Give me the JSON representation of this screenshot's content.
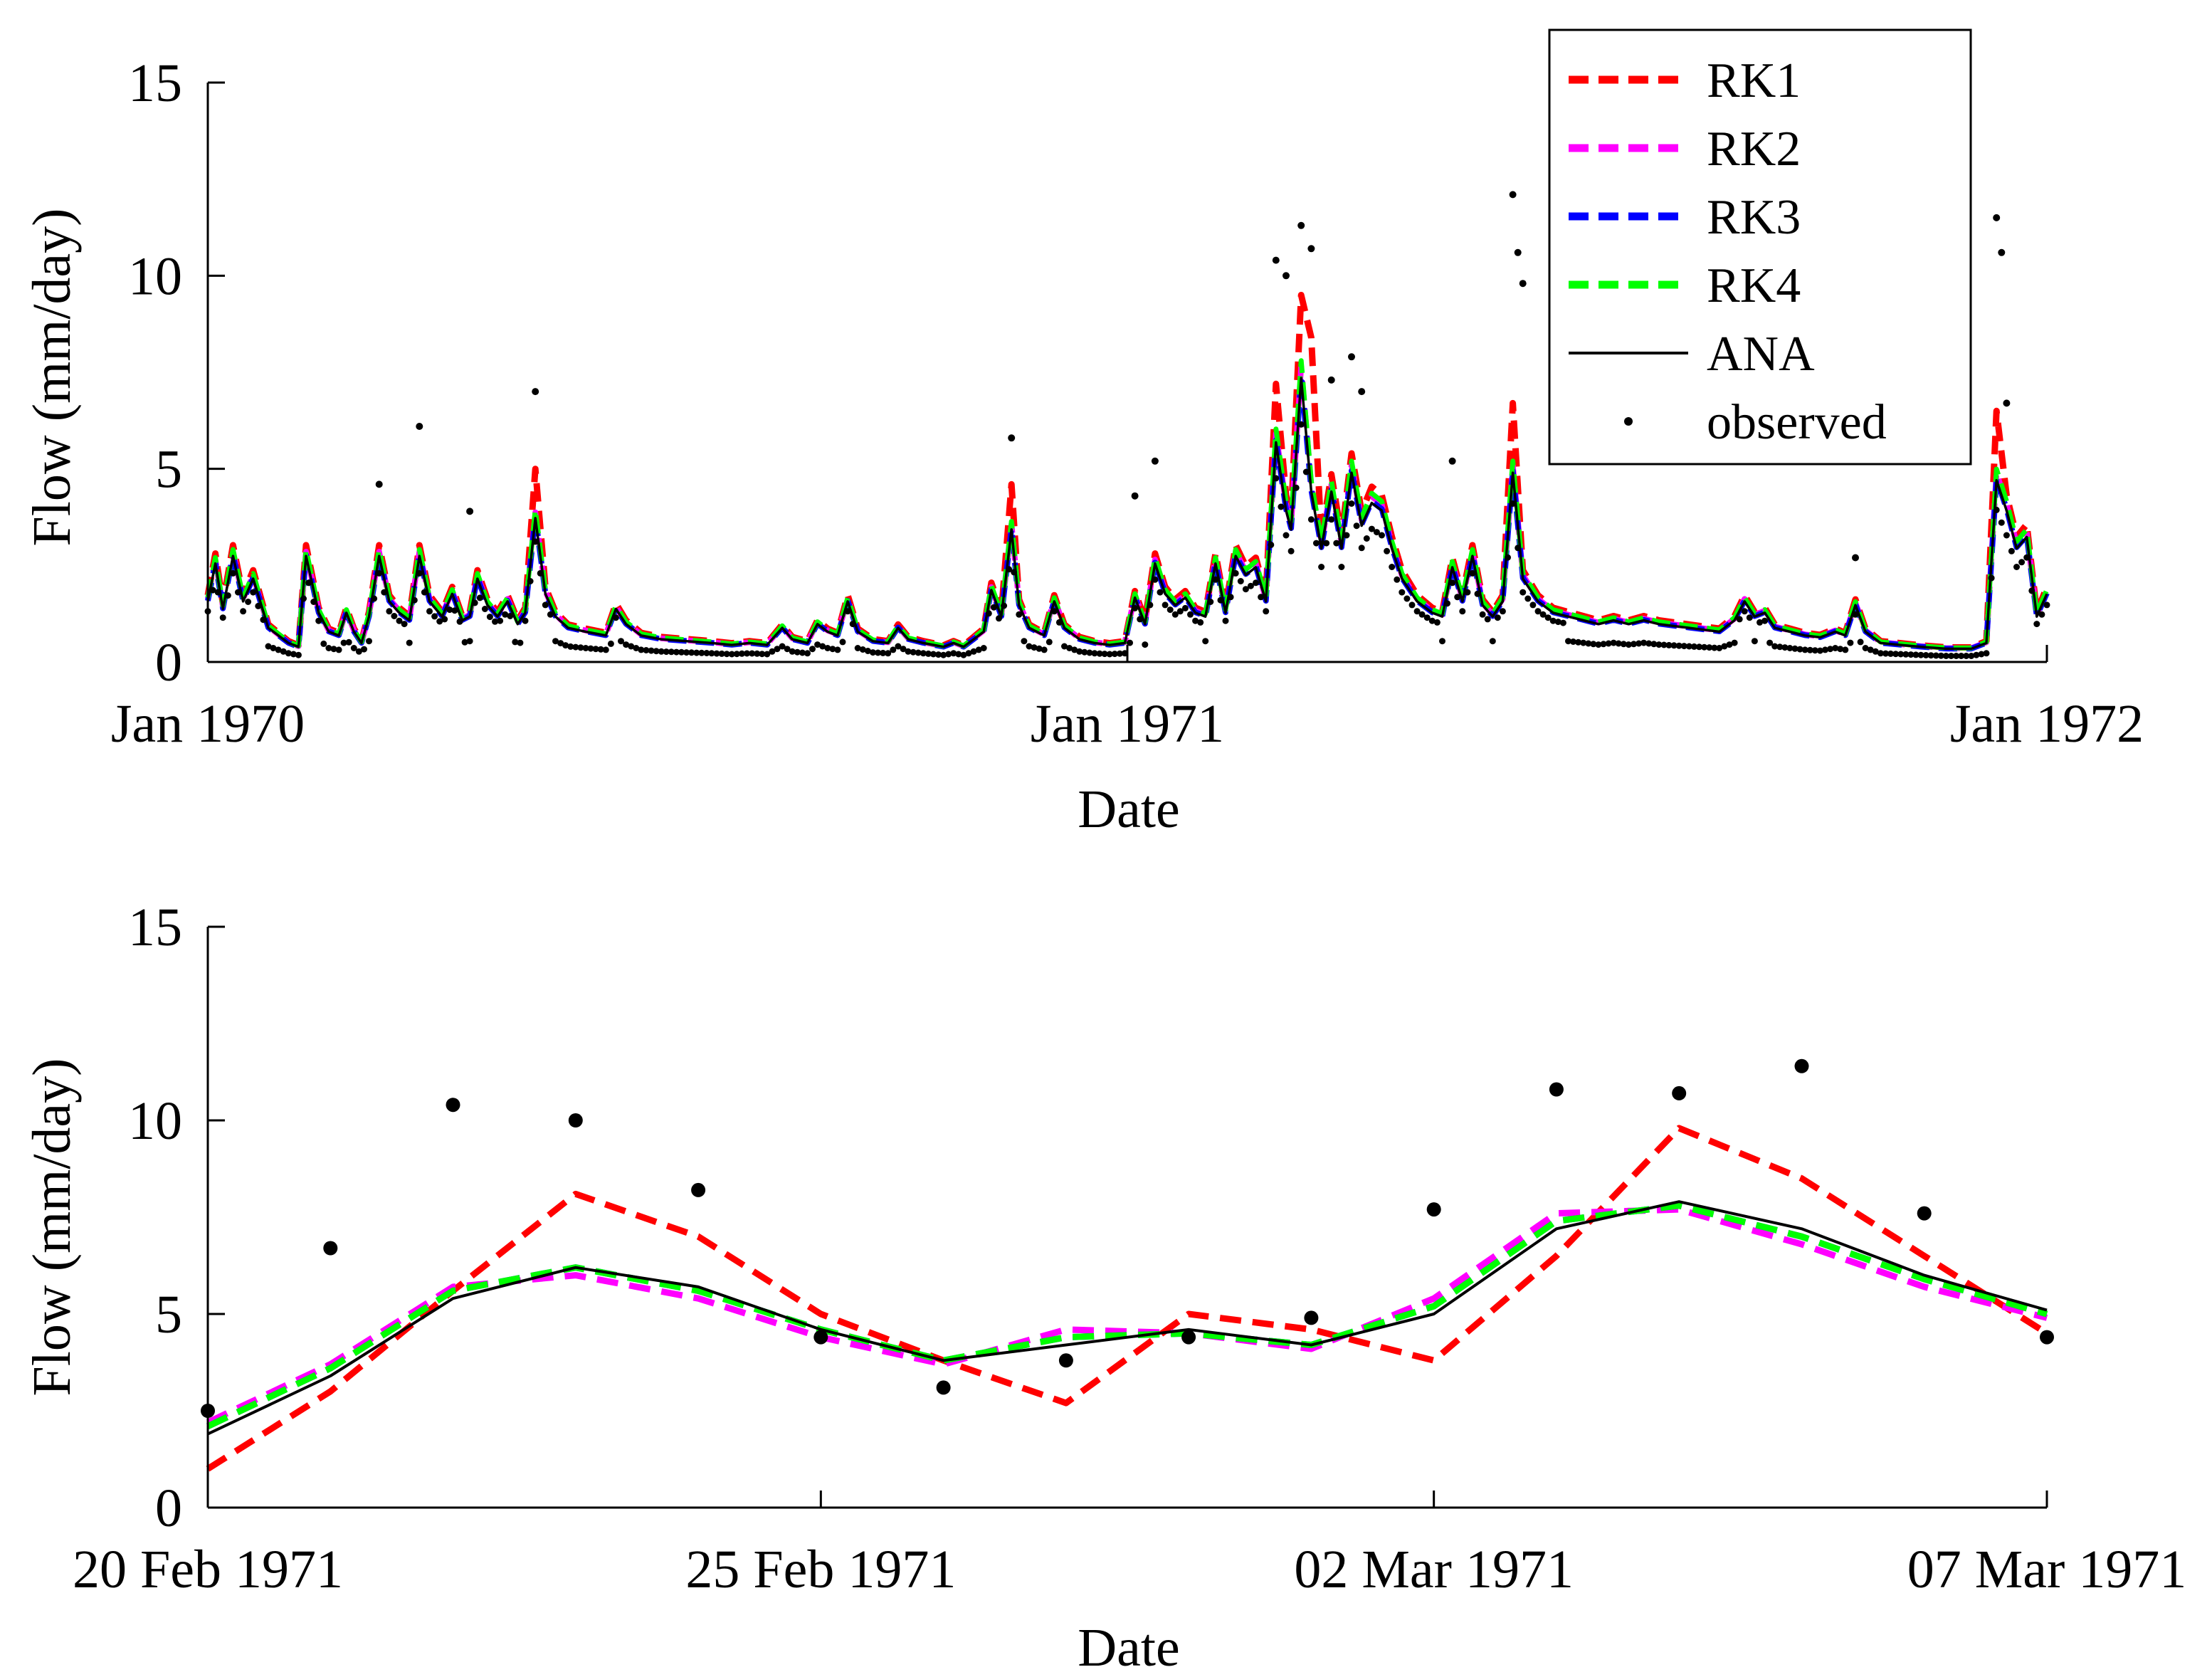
{
  "chart_data": [
    {
      "type": "line",
      "xlabel": "Date",
      "ylabel": "Flow (mm/day)",
      "xlim": [
        0,
        730
      ],
      "ylim": [
        0,
        15
      ],
      "xticks": [
        {
          "value": 0,
          "label": "Jan 1970"
        },
        {
          "value": 365,
          "label": "Jan 1971"
        },
        {
          "value": 730,
          "label": "Jan 1972"
        }
      ],
      "yticks": [
        {
          "value": 0,
          "label": "0"
        },
        {
          "value": 5,
          "label": "5"
        },
        {
          "value": 10,
          "label": "10"
        },
        {
          "value": 15,
          "label": "15"
        }
      ],
      "legend": {
        "position": "top-right",
        "entries": [
          "RK1",
          "RK2",
          "RK3",
          "RK4",
          "ANA",
          "observed"
        ]
      },
      "colors": {
        "RK1": "#ff0000",
        "RK2": "#ff00ff",
        "RK3": "#0000ff",
        "RK4": "#00ff00",
        "ANA": "#000000",
        "observed": "#000000"
      },
      "base_flow": [
        [
          0,
          1.6
        ],
        [
          3,
          2.6
        ],
        [
          6,
          1.4
        ],
        [
          10,
          2.8
        ],
        [
          14,
          1.6
        ],
        [
          18,
          2.2
        ],
        [
          24,
          0.9
        ],
        [
          32,
          0.5
        ],
        [
          36,
          0.4
        ],
        [
          39,
          2.8
        ],
        [
          44,
          1.3
        ],
        [
          48,
          0.8
        ],
        [
          52,
          0.7
        ],
        [
          55,
          1.3
        ],
        [
          58,
          0.8
        ],
        [
          61,
          0.5
        ],
        [
          64,
          1.2
        ],
        [
          68,
          2.8
        ],
        [
          72,
          1.6
        ],
        [
          76,
          1.3
        ],
        [
          80,
          1.1
        ],
        [
          84,
          2.8
        ],
        [
          88,
          1.6
        ],
        [
          93,
          1.2
        ],
        [
          97,
          1.8
        ],
        [
          101,
          1.1
        ],
        [
          104,
          1.2
        ],
        [
          107,
          2.2
        ],
        [
          111,
          1.5
        ],
        [
          115,
          1.2
        ],
        [
          119,
          1.6
        ],
        [
          123,
          1.0
        ],
        [
          126,
          1.3
        ],
        [
          130,
          3.8
        ],
        [
          134,
          1.8
        ],
        [
          138,
          1.2
        ],
        [
          143,
          0.9
        ],
        [
          150,
          0.8
        ],
        [
          158,
          0.7
        ],
        [
          162,
          1.4
        ],
        [
          166,
          1.0
        ],
        [
          172,
          0.7
        ],
        [
          180,
          0.6
        ],
        [
          190,
          0.55
        ],
        [
          200,
          0.5
        ],
        [
          208,
          0.45
        ],
        [
          215,
          0.5
        ],
        [
          222,
          0.45
        ],
        [
          228,
          0.9
        ],
        [
          232,
          0.6
        ],
        [
          238,
          0.5
        ],
        [
          242,
          1.0
        ],
        [
          246,
          0.8
        ],
        [
          250,
          0.7
        ],
        [
          254,
          1.6
        ],
        [
          258,
          0.8
        ],
        [
          264,
          0.55
        ],
        [
          270,
          0.5
        ],
        [
          274,
          0.9
        ],
        [
          278,
          0.6
        ],
        [
          284,
          0.5
        ],
        [
          292,
          0.4
        ],
        [
          296,
          0.5
        ],
        [
          300,
          0.4
        ],
        [
          304,
          0.6
        ],
        [
          308,
          0.8
        ],
        [
          311,
          1.9
        ],
        [
          315,
          1.2
        ],
        [
          319,
          3.5
        ],
        [
          322,
          1.5
        ],
        [
          326,
          0.9
        ],
        [
          332,
          0.7
        ],
        [
          336,
          1.6
        ],
        [
          340,
          0.9
        ],
        [
          346,
          0.6
        ],
        [
          352,
          0.5
        ],
        [
          358,
          0.45
        ],
        [
          364,
          0.5
        ],
        [
          368,
          1.7
        ],
        [
          372,
          1.0
        ],
        [
          376,
          2.6
        ],
        [
          380,
          1.8
        ],
        [
          384,
          1.5
        ],
        [
          388,
          1.7
        ],
        [
          392,
          1.3
        ],
        [
          396,
          1.2
        ],
        [
          400,
          2.6
        ],
        [
          404,
          1.3
        ],
        [
          408,
          2.8
        ],
        [
          412,
          2.3
        ],
        [
          416,
          2.5
        ],
        [
          420,
          1.6
        ],
        [
          424,
          5.8
        ],
        [
          428,
          4.0
        ],
        [
          430,
          3.5
        ],
        [
          434,
          7.5
        ],
        [
          438,
          4.5
        ],
        [
          442,
          3.0
        ],
        [
          446,
          4.5
        ],
        [
          450,
          3.0
        ],
        [
          454,
          5.0
        ],
        [
          458,
          3.6
        ],
        [
          462,
          4.2
        ],
        [
          466,
          4.0
        ],
        [
          470,
          3.0
        ],
        [
          474,
          2.2
        ],
        [
          480,
          1.6
        ],
        [
          486,
          1.3
        ],
        [
          490,
          1.2
        ],
        [
          494,
          2.5
        ],
        [
          498,
          1.6
        ],
        [
          502,
          2.8
        ],
        [
          506,
          1.5
        ],
        [
          510,
          1.2
        ],
        [
          514,
          1.6
        ],
        [
          518,
          5.0
        ],
        [
          522,
          2.2
        ],
        [
          528,
          1.6
        ],
        [
          534,
          1.3
        ],
        [
          540,
          1.2
        ],
        [
          546,
          1.1
        ],
        [
          552,
          1.0
        ],
        [
          558,
          1.1
        ],
        [
          564,
          1.0
        ],
        [
          570,
          1.1
        ],
        [
          576,
          1.0
        ],
        [
          582,
          0.95
        ],
        [
          588,
          0.9
        ],
        [
          594,
          0.85
        ],
        [
          600,
          0.8
        ],
        [
          606,
          1.1
        ],
        [
          610,
          1.6
        ],
        [
          614,
          1.2
        ],
        [
          618,
          1.3
        ],
        [
          622,
          0.9
        ],
        [
          628,
          0.8
        ],
        [
          634,
          0.7
        ],
        [
          640,
          0.65
        ],
        [
          646,
          0.8
        ],
        [
          650,
          0.7
        ],
        [
          654,
          1.5
        ],
        [
          658,
          0.8
        ],
        [
          664,
          0.5
        ],
        [
          672,
          0.45
        ],
        [
          680,
          0.4
        ],
        [
          690,
          0.35
        ],
        [
          700,
          0.35
        ],
        [
          706,
          0.5
        ],
        [
          710,
          4.8
        ],
        [
          714,
          4.0
        ],
        [
          718,
          3.0
        ],
        [
          722,
          3.3
        ],
        [
          726,
          1.2
        ],
        [
          730,
          1.8
        ]
      ],
      "rk1_peaks": [
        [
          130,
          5.0
        ],
        [
          319,
          4.6
        ],
        [
          424,
          7.2
        ],
        [
          434,
          9.5
        ],
        [
          438,
          8.4
        ],
        [
          518,
          6.7
        ],
        [
          710,
          6.5
        ]
      ],
      "observed_peaks": [
        [
          68,
          4.6
        ],
        [
          84,
          6.1
        ],
        [
          104,
          3.9
        ],
        [
          130,
          7.0
        ],
        [
          319,
          5.8
        ],
        [
          368,
          4.3
        ],
        [
          376,
          5.2
        ],
        [
          424,
          10.4
        ],
        [
          428,
          10.0
        ],
        [
          434,
          11.3
        ],
        [
          438,
          10.7
        ],
        [
          446,
          7.3
        ],
        [
          454,
          7.9
        ],
        [
          458,
          7.0
        ],
        [
          494,
          5.2
        ],
        [
          518,
          12.1
        ],
        [
          520,
          10.6
        ],
        [
          522,
          9.8
        ],
        [
          654,
          2.7
        ],
        [
          710,
          11.5
        ],
        [
          712,
          10.6
        ],
        [
          714,
          6.7
        ]
      ]
    },
    {
      "type": "line",
      "xlabel": "Date",
      "ylabel": "Flow (mm/day)",
      "xlim": [
        0,
        15
      ],
      "ylim": [
        0,
        15
      ],
      "xticks": [
        {
          "value": 0,
          "label": "20 Feb 1971"
        },
        {
          "value": 5,
          "label": "25 Feb 1971"
        },
        {
          "value": 10,
          "label": "02 Mar 1971"
        },
        {
          "value": 15,
          "label": "07 Mar 1971"
        }
      ],
      "yticks": [
        {
          "value": 0,
          "label": "0"
        },
        {
          "value": 5,
          "label": "5"
        },
        {
          "value": 10,
          "label": "10"
        },
        {
          "value": 15,
          "label": "15"
        }
      ],
      "x": [
        0,
        1,
        2,
        3,
        4,
        5,
        6,
        7,
        8,
        9,
        10,
        11,
        12,
        13,
        14,
        15
      ],
      "series": [
        {
          "name": "RK1",
          "color": "#ff0000",
          "style": "dashed",
          "values": [
            1.0,
            3.0,
            5.6,
            8.1,
            7.0,
            5.0,
            3.8,
            2.7,
            5.0,
            4.6,
            3.8,
            6.5,
            9.8,
            8.5,
            6.5,
            4.5
          ]
        },
        {
          "name": "RK2",
          "color": "#ff00ff",
          "style": "dashed",
          "values": [
            2.2,
            3.7,
            5.7,
            6.0,
            5.4,
            4.4,
            3.7,
            4.6,
            4.5,
            4.1,
            5.4,
            7.6,
            7.7,
            6.8,
            5.7,
            4.9
          ]
        },
        {
          "name": "RK3",
          "color": "#0000ff",
          "style": "dashed",
          "values": [
            2.1,
            3.6,
            5.6,
            6.2,
            5.6,
            4.6,
            3.8,
            4.4,
            4.5,
            4.2,
            5.2,
            7.4,
            7.8,
            7.0,
            5.9,
            5.0
          ]
        },
        {
          "name": "RK4",
          "color": "#00ff00",
          "style": "dashed",
          "values": [
            2.1,
            3.6,
            5.6,
            6.2,
            5.6,
            4.6,
            3.8,
            4.4,
            4.5,
            4.2,
            5.2,
            7.4,
            7.8,
            7.0,
            5.9,
            5.0
          ]
        },
        {
          "name": "ANA",
          "color": "#000000",
          "style": "solid",
          "values": [
            1.9,
            3.4,
            5.4,
            6.2,
            5.7,
            4.6,
            3.8,
            4.2,
            4.6,
            4.2,
            5.0,
            7.2,
            7.9,
            7.2,
            6.0,
            5.1
          ]
        },
        {
          "name": "observed",
          "color": "#000000",
          "style": "markers",
          "values": [
            2.5,
            6.7,
            10.4,
            10.0,
            8.2,
            4.4,
            3.1,
            3.8,
            4.4,
            4.9,
            7.7,
            10.8,
            10.7,
            11.4,
            7.6,
            4.4
          ]
        }
      ]
    }
  ]
}
